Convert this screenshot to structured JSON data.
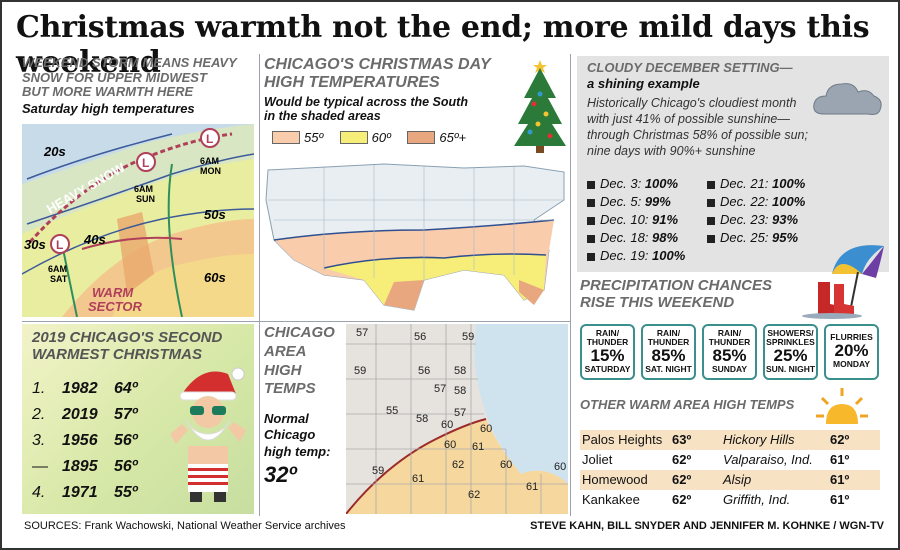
{
  "title": "Christmas warmth not the end; more mild days this weekend",
  "storm": {
    "header": [
      "WEEKEND STORM MEANS HEAVY",
      "SNOW FOR UPPER MIDWEST",
      "BUT MORE WARMTH HERE"
    ],
    "subheader": "Saturday high temperatures",
    "labels": {
      "t20": "20s",
      "t30": "30s",
      "t40": "40s",
      "t50": "50s",
      "t60": "60s",
      "heavy_snow": "HEAVY SNOW",
      "warm_sector_1": "WARM",
      "warm_sector_2": "SECTOR",
      "low": "L",
      "sat": "6AM\nSAT",
      "sun": "6AM\nSUN",
      "mon": "6AM\nMON"
    }
  },
  "xmas_map": {
    "header": [
      "CHICAGO'S CHRISTMAS DAY",
      "HIGH TEMPERATURES"
    ],
    "subheader": [
      "Would be typical across the South",
      "in the shaded areas"
    ],
    "legend": [
      {
        "label": "55º",
        "color": "#f9ccac"
      },
      {
        "label": "60º",
        "color": "#f7ee7a"
      },
      {
        "label": "65º+",
        "color": "#e8a77e"
      }
    ]
  },
  "cloudy": {
    "header": "CLOUDY DECEMBER SETTING—",
    "subheader": "a shining example",
    "body": [
      "Historically Chicago's cloudiest month",
      "with just 41% of possible sunshine—",
      "through Christmas 58% of possible sun;",
      "nine days with 90%+ sunshine"
    ],
    "days": [
      {
        "date": "Dec. 3:",
        "pct": "100%"
      },
      {
        "date": "Dec. 21:",
        "pct": "100%"
      },
      {
        "date": "Dec. 5:",
        "pct": "99%"
      },
      {
        "date": "Dec. 22:",
        "pct": "100%"
      },
      {
        "date": "Dec. 10:",
        "pct": "91%"
      },
      {
        "date": "Dec. 23:",
        "pct": "93%"
      },
      {
        "date": "Dec. 18:",
        "pct": "98%"
      },
      {
        "date": "Dec. 25:",
        "pct": "95%"
      },
      {
        "date": "Dec. 19:",
        "pct": "100%"
      }
    ]
  },
  "precip": {
    "header": [
      "PRECIPITATION CHANCES",
      "RISE THIS WEEKEND"
    ],
    "items": [
      {
        "type": "RAIN/\nTHUNDER",
        "pct": "15%",
        "day": "SATURDAY"
      },
      {
        "type": "RAIN/\nTHUNDER",
        "pct": "85%",
        "day": "SAT. NIGHT"
      },
      {
        "type": "RAIN/\nTHUNDER",
        "pct": "85%",
        "day": "SUNDAY"
      },
      {
        "type": "SHOWERS/\nSPRINKLES",
        "pct": "25%",
        "day": "SUN. NIGHT"
      },
      {
        "type": "FLURRIES",
        "pct": "20%",
        "day": "MONDAY"
      }
    ]
  },
  "warm_area": {
    "header": "OTHER WARM AREA HIGH TEMPS",
    "rows": [
      {
        "a": "Palos Heights",
        "at": "63º",
        "b": "Hickory Hills",
        "bt": "62º"
      },
      {
        "a": "Joliet",
        "at": "62º",
        "b": "Valparaiso, Ind.",
        "bt": "61º"
      },
      {
        "a": "Homewood",
        "at": "62º",
        "b": "Alsip",
        "bt": "61º"
      },
      {
        "a": "Kankakee",
        "at": "62º",
        "b": "Griffith, Ind.",
        "bt": "61º"
      }
    ]
  },
  "second_warmest": {
    "header": [
      "2019 CHICAGO'S SECOND",
      "WARMEST CHRISTMAS"
    ],
    "rows": [
      {
        "rank": "1.",
        "year": "1982",
        "temp": "64º"
      },
      {
        "rank": "2.",
        "year": "2019",
        "temp": "57º"
      },
      {
        "rank": "3.",
        "year": "1956",
        "temp": "56º"
      },
      {
        "rank": "—",
        "year": "1895",
        "temp": "56º"
      },
      {
        "rank": "4.",
        "year": "1971",
        "temp": "55º"
      }
    ]
  },
  "area_temps": {
    "header": [
      "CHICAGO",
      "AREA",
      "HIGH",
      "TEMPS"
    ],
    "normal_label": [
      "Normal",
      "Chicago",
      "high temp:"
    ],
    "normal_value": "32º",
    "values": [
      "57",
      "56",
      "59",
      "59",
      "56",
      "58",
      "57",
      "58",
      "55",
      "58",
      "57",
      "60",
      "60",
      "60",
      "62",
      "61",
      "60",
      "59",
      "61",
      "62",
      "61",
      "60"
    ]
  },
  "footer": {
    "sources": "SOURCES: Frank Wachowski, National Weather Service archives",
    "credits": "STEVE KAHN, BILL SNYDER AND JENNIFER M. KOHNKE / WGN-TV"
  }
}
